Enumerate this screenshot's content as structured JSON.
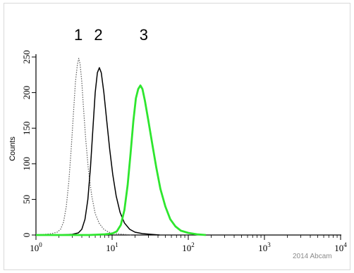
{
  "chart_data": {
    "type": "line",
    "title": "",
    "xlabel": "",
    "ylabel": "Counts",
    "x_scale": "log",
    "xlim": [
      1,
      10000
    ],
    "ylim": [
      0,
      250
    ],
    "x_ticks": [
      {
        "base": "10",
        "exp": "0"
      },
      {
        "base": "10",
        "exp": "1"
      },
      {
        "base": "10",
        "exp": "2"
      },
      {
        "base": "10",
        "exp": "3"
      },
      {
        "base": "10",
        "exp": "4"
      }
    ],
    "y_ticks": [
      "0",
      "50",
      "100",
      "150",
      "200",
      "250"
    ],
    "grid": false,
    "legend": "none",
    "peak_labels": [
      {
        "text": "1",
        "x": 3.6,
        "y": 250
      },
      {
        "text": "2",
        "x": 6.6,
        "y": 250
      },
      {
        "text": "3",
        "x": 26,
        "y": 250
      }
    ],
    "watermark": "2014 Abcam",
    "series": [
      {
        "id": "1",
        "color": "#5a5a5a",
        "style": "dotted",
        "points": [
          [
            1,
            0
          ],
          [
            1.3,
            1
          ],
          [
            1.6,
            2
          ],
          [
            1.9,
            4
          ],
          [
            2.1,
            8
          ],
          [
            2.3,
            18
          ],
          [
            2.5,
            40
          ],
          [
            2.7,
            75
          ],
          [
            2.9,
            120
          ],
          [
            3.1,
            170
          ],
          [
            3.3,
            215
          ],
          [
            3.5,
            240
          ],
          [
            3.65,
            248
          ],
          [
            3.8,
            240
          ],
          [
            4.0,
            215
          ],
          [
            4.2,
            180
          ],
          [
            4.5,
            135
          ],
          [
            4.9,
            90
          ],
          [
            5.4,
            55
          ],
          [
            6.0,
            30
          ],
          [
            6.8,
            16
          ],
          [
            7.8,
            8
          ],
          [
            9,
            4
          ],
          [
            11,
            2
          ],
          [
            14,
            1
          ],
          [
            18,
            0
          ]
        ]
      },
      {
        "id": "2",
        "color": "#000000",
        "style": "solid",
        "points": [
          [
            1,
            0
          ],
          [
            2,
            0
          ],
          [
            3,
            1
          ],
          [
            3.6,
            3
          ],
          [
            4.0,
            8
          ],
          [
            4.4,
            22
          ],
          [
            4.8,
            50
          ],
          [
            5.2,
            95
          ],
          [
            5.6,
            150
          ],
          [
            6.0,
            200
          ],
          [
            6.4,
            228
          ],
          [
            6.8,
            235
          ],
          [
            7.2,
            228
          ],
          [
            7.8,
            200
          ],
          [
            8.5,
            160
          ],
          [
            9.3,
            120
          ],
          [
            10.2,
            85
          ],
          [
            11.3,
            55
          ],
          [
            12.7,
            32
          ],
          [
            14.5,
            17
          ],
          [
            17,
            8
          ],
          [
            20,
            4
          ],
          [
            25,
            2
          ],
          [
            32,
            1
          ],
          [
            42,
            0
          ]
        ]
      },
      {
        "id": "3",
        "color": "#2ee62e",
        "style": "solid",
        "points": [
          [
            1,
            0
          ],
          [
            5,
            0
          ],
          [
            8,
            1
          ],
          [
            10,
            2
          ],
          [
            11.5,
            5
          ],
          [
            13,
            14
          ],
          [
            14.5,
            35
          ],
          [
            16,
            70
          ],
          [
            17.5,
            115
          ],
          [
            19,
            160
          ],
          [
            20.5,
            192
          ],
          [
            22,
            205
          ],
          [
            23.5,
            210
          ],
          [
            25,
            205
          ],
          [
            27,
            188
          ],
          [
            30,
            160
          ],
          [
            34,
            125
          ],
          [
            38,
            95
          ],
          [
            43,
            65
          ],
          [
            50,
            40
          ],
          [
            58,
            22
          ],
          [
            68,
            12
          ],
          [
            80,
            6
          ],
          [
            100,
            3
          ],
          [
            130,
            1
          ],
          [
            170,
            0
          ]
        ]
      }
    ]
  }
}
